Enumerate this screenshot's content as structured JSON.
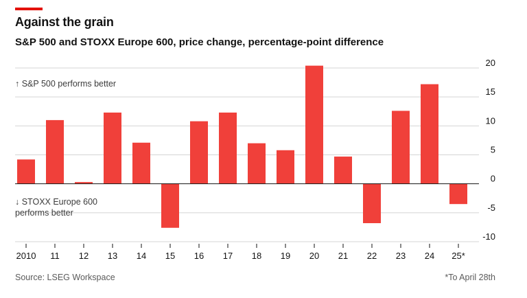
{
  "title": "Against the grain",
  "subtitle": "S&P 500 and STOXX Europe 600, price change, percentage-point difference",
  "annotations": {
    "top": "↑ S&P 500 performs better",
    "bottom": "↓ STOXX Europe 600 performs better"
  },
  "source": "Source: LSEG Workspace",
  "footnote": "*To April 28th",
  "colors": {
    "bar": "#f0403a",
    "accent": "#e3120b",
    "grid": "#d4d4d4",
    "axis": "#121212"
  },
  "chart_data": {
    "type": "bar",
    "categories": [
      "2010",
      "11",
      "12",
      "13",
      "14",
      "15",
      "16",
      "17",
      "18",
      "19",
      "20",
      "21",
      "22",
      "23",
      "24",
      "25*"
    ],
    "values": [
      4.2,
      11.0,
      0.3,
      12.3,
      7.1,
      -7.6,
      10.8,
      12.3,
      7.0,
      5.8,
      20.4,
      4.7,
      -6.8,
      12.6,
      17.2,
      -3.5
    ],
    "ylim": [
      -10,
      20
    ],
    "yticks": [
      20,
      15,
      10,
      5,
      0,
      -5,
      -10
    ],
    "ytick_labels": [
      "20",
      "15",
      "10",
      "5",
      "0",
      "-5",
      "-10"
    ],
    "grid": true,
    "xlabel": "",
    "ylabel": ""
  }
}
